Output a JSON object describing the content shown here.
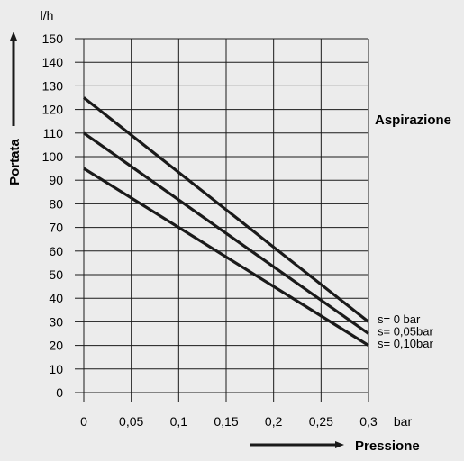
{
  "chart_data": {
    "type": "line",
    "y_unit": "l/h",
    "x_unit": "bar",
    "ylabel": "Portata",
    "xlabel": "Pressione",
    "legend_title": "Aspirazione",
    "x_ticks": [
      "0",
      "0,05",
      "0,1",
      "0,15",
      "0,2",
      "0,25",
      "0,3"
    ],
    "y_ticks": [
      "0",
      "10",
      "20",
      "30",
      "40",
      "50",
      "60",
      "70",
      "80",
      "90",
      "100",
      "110",
      "120",
      "130",
      "140",
      "150"
    ],
    "xlim": [
      0,
      0.3
    ],
    "ylim": [
      0,
      150
    ],
    "grid": true,
    "series": [
      {
        "name": "s=  0   bar",
        "x": [
          0,
          0.3
        ],
        "y": [
          125,
          30
        ]
      },
      {
        "name": "s=  0,05bar",
        "x": [
          0,
          0.3
        ],
        "y": [
          110,
          25
        ]
      },
      {
        "name": "s=  0,10bar",
        "x": [
          0,
          0.3
        ],
        "y": [
          95,
          20
        ]
      }
    ],
    "colors": {
      "background": "#ececec",
      "line": "#1a1a1a",
      "grid": "#1a1a1a"
    }
  }
}
